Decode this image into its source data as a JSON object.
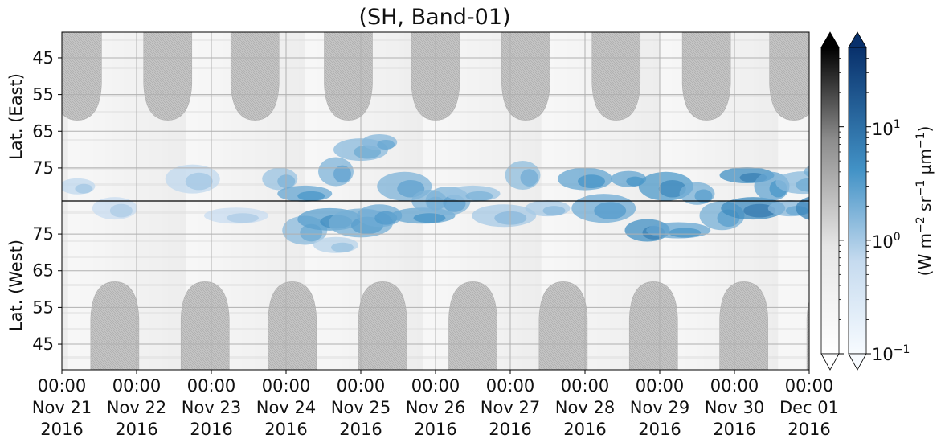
{
  "chart_data": {
    "type": "heatmap",
    "title": "(SH, Band-01)",
    "upper_panel": {
      "ylabel": "Lat. (East)",
      "ytick_labels": [
        "45",
        "55",
        "65",
        "75"
      ],
      "ylim": [
        38,
        84
      ]
    },
    "lower_panel": {
      "ylabel": "Lat. (West)",
      "ytick_labels": [
        "75",
        "65",
        "55",
        "45"
      ],
      "ylim": [
        84,
        38
      ]
    },
    "x_ticks": [
      {
        "time": "00:00",
        "date": "Nov 21",
        "year": "2016"
      },
      {
        "time": "00:00",
        "date": "Nov 22",
        "year": "2016"
      },
      {
        "time": "00:00",
        "date": "Nov 23",
        "year": "2016"
      },
      {
        "time": "00:00",
        "date": "Nov 24",
        "year": "2016"
      },
      {
        "time": "00:00",
        "date": "Nov 25",
        "year": "2016"
      },
      {
        "time": "00:00",
        "date": "Nov 26",
        "year": "2016"
      },
      {
        "time": "00:00",
        "date": "Nov 27",
        "year": "2016"
      },
      {
        "time": "00:00",
        "date": "Nov 28",
        "year": "2016"
      },
      {
        "time": "00:00",
        "date": "Nov 29",
        "year": "2016"
      },
      {
        "time": "00:00",
        "date": "Nov 30",
        "year": "2016"
      },
      {
        "time": "00:00",
        "date": "Dec 01",
        "year": "2016"
      }
    ],
    "grid": true,
    "colorbars": [
      {
        "name": "gray",
        "scale": "log",
        "range": [
          0.1,
          50
        ],
        "extend": "both",
        "top_color": "#000000"
      },
      {
        "name": "blue",
        "scale": "log",
        "range": [
          0.1,
          50
        ],
        "extend": "both",
        "top_color": "#08306b",
        "tick_labels": [
          "10^1",
          "10^0",
          "10^-1"
        ]
      }
    ],
    "colorbar_label": "(W m^-2 sr^-1 μm^-1)",
    "colors": {
      "gray_high": "#000000",
      "gray_low": "#ffffff",
      "blue_high": "#08306b",
      "blue_mid": "#4292c6",
      "blue_low": "#f7fbff",
      "nightside_mask": "#b8b8b8"
    },
    "nightside_mask_periods": [
      {
        "panel": "upper",
        "center": "2016-11-21T05:00"
      },
      {
        "panel": "upper",
        "center": "2016-11-22T10:00"
      },
      {
        "panel": "upper",
        "center": "2016-11-23T14:00"
      },
      {
        "panel": "upper",
        "center": "2016-11-24T20:00"
      },
      {
        "panel": "upper",
        "center": "2016-11-26T00:00"
      },
      {
        "panel": "upper",
        "center": "2016-11-27T05:00"
      },
      {
        "panel": "upper",
        "center": "2016-11-28T10:00"
      },
      {
        "panel": "upper",
        "center": "2016-11-29T15:00"
      },
      {
        "panel": "upper",
        "center": "2016-11-30T19:00"
      },
      {
        "panel": "lower",
        "center": "2016-11-21T17:00"
      },
      {
        "panel": "lower",
        "center": "2016-11-22T22:00"
      },
      {
        "panel": "lower",
        "center": "2016-11-24T02:00"
      },
      {
        "panel": "lower",
        "center": "2016-11-25T07:00"
      },
      {
        "panel": "lower",
        "center": "2016-11-26T12:00"
      },
      {
        "panel": "lower",
        "center": "2016-11-27T17:00"
      },
      {
        "panel": "lower",
        "center": "2016-11-28T22:00"
      },
      {
        "panel": "lower",
        "center": "2016-11-30T03:00"
      },
      {
        "panel": "lower",
        "center": "2016-12-01T07:00"
      }
    ],
    "emission_patches": [
      {
        "t": "2016-11-21T05:00",
        "lat": 80,
        "value": 0.7
      },
      {
        "t": "2016-11-21T17:00",
        "lat": 82,
        "value": 0.6
      },
      {
        "t": "2016-11-22T18:00",
        "lat": 78,
        "value": 0.7
      },
      {
        "t": "2016-11-23T08:00",
        "lat": 80,
        "value": 0.6
      },
      {
        "t": "2016-11-23T22:00",
        "lat": 78,
        "value": 1.2
      },
      {
        "t": "2016-11-24T06:00",
        "lat": 76,
        "value": 1.5
      },
      {
        "t": "2016-11-24T06:00",
        "lat": 82,
        "value": 2.5
      },
      {
        "t": "2016-11-24T14:00",
        "lat": 79,
        "value": 3.0
      },
      {
        "t": "2016-11-24T16:00",
        "lat": 76,
        "value": 1.8
      },
      {
        "t": "2016-11-24T16:00",
        "lat": 72,
        "value": 0.8
      },
      {
        "t": "2016-11-25T00:00",
        "lat": 70,
        "value": 1.5
      },
      {
        "t": "2016-11-25T00:00",
        "lat": 78,
        "value": 2.0
      },
      {
        "t": "2016-11-25T06:00",
        "lat": 68,
        "value": 1.6
      },
      {
        "t": "2016-11-25T06:00",
        "lat": 80,
        "value": 2.2
      },
      {
        "t": "2016-11-25T14:00",
        "lat": 80,
        "value": 1.8
      },
      {
        "t": "2016-11-25T20:00",
        "lat": 80,
        "value": 2.6
      },
      {
        "t": "2016-11-25T22:00",
        "lat": 84,
        "value": 1.8
      },
      {
        "t": "2016-11-26T04:00",
        "lat": 84,
        "value": 1.8
      },
      {
        "t": "2016-11-26T12:00",
        "lat": 82,
        "value": 1.2
      },
      {
        "t": "2016-11-26T22:00",
        "lat": 80,
        "value": 1.0
      },
      {
        "t": "2016-11-27T04:00",
        "lat": 77,
        "value": 1.4
      },
      {
        "t": "2016-11-27T12:00",
        "lat": 82,
        "value": 1.0
      },
      {
        "t": "2016-11-28T00:00",
        "lat": 78,
        "value": 2.6
      },
      {
        "t": "2016-11-28T06:00",
        "lat": 82,
        "value": 2.2
      },
      {
        "t": "2016-11-28T14:00",
        "lat": 78,
        "value": 2.6
      },
      {
        "t": "2016-11-28T20:00",
        "lat": 76,
        "value": 4.5
      },
      {
        "t": "2016-11-29T02:00",
        "lat": 80,
        "value": 3.5
      },
      {
        "t": "2016-11-29T06:00",
        "lat": 76,
        "value": 2.5
      },
      {
        "t": "2016-11-29T12:00",
        "lat": 82,
        "value": 2.0
      },
      {
        "t": "2016-11-29T20:00",
        "lat": 80,
        "value": 2.0
      },
      {
        "t": "2016-11-30T04:00",
        "lat": 77,
        "value": 4.5
      },
      {
        "t": "2016-11-30T06:00",
        "lat": 82,
        "value": 5.0
      },
      {
        "t": "2016-11-30T12:00",
        "lat": 80,
        "value": 2.5
      },
      {
        "t": "2016-11-30T18:00",
        "lat": 82,
        "value": 1.6
      },
      {
        "t": "2016-11-30T22:00",
        "lat": 79,
        "value": 1.5
      },
      {
        "t": "2016-12-01T06:00",
        "lat": 82,
        "value": 6.0
      },
      {
        "t": "2016-12-01T04:00",
        "lat": 76,
        "value": 2.0
      }
    ]
  }
}
